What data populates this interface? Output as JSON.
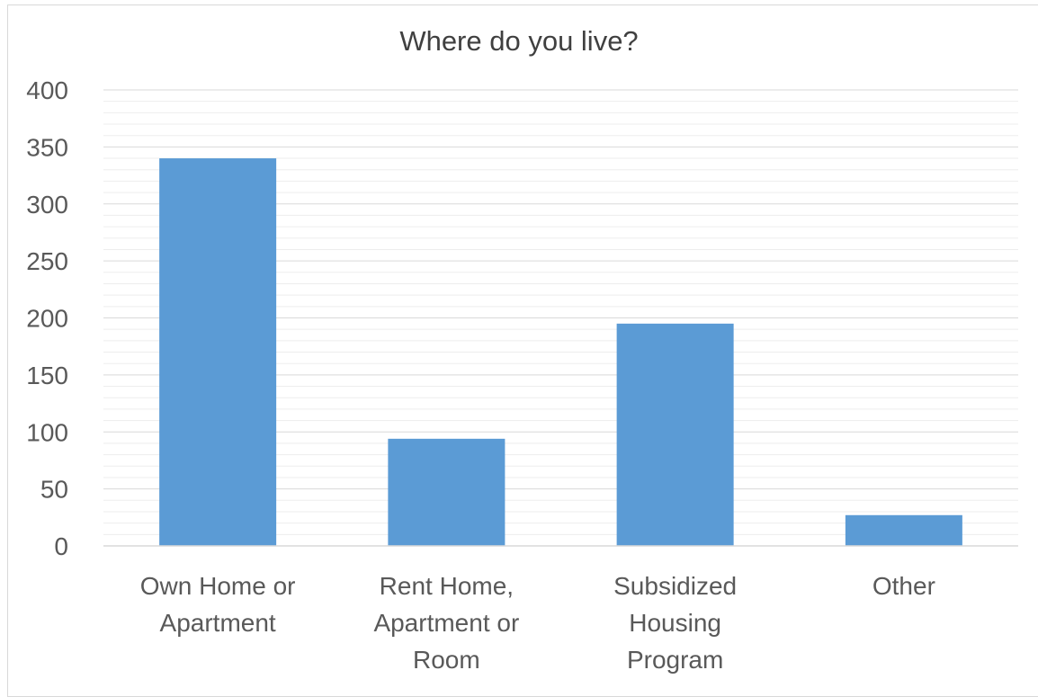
{
  "chart_data": {
    "type": "bar",
    "title": "Where do you live?",
    "categories": [
      [
        "Own Home or",
        "Apartment"
      ],
      [
        "Rent Home,",
        "Apartment or",
        "Room"
      ],
      [
        "Subsidized",
        "Housing",
        "Program"
      ],
      [
        "Other"
      ]
    ],
    "values": [
      340,
      94,
      195,
      27
    ],
    "ylim": [
      0,
      400
    ],
    "yticks": [
      0,
      50,
      100,
      150,
      200,
      250,
      300,
      350,
      400
    ],
    "minor_step": 10,
    "grid": true,
    "legend": "none",
    "xlabel": "",
    "ylabel": "",
    "colors": {
      "bar": "#5b9bd5",
      "major_grid": "#d9d9d9",
      "minor_grid": "#ededed",
      "axis": "#d9d9d9"
    }
  }
}
